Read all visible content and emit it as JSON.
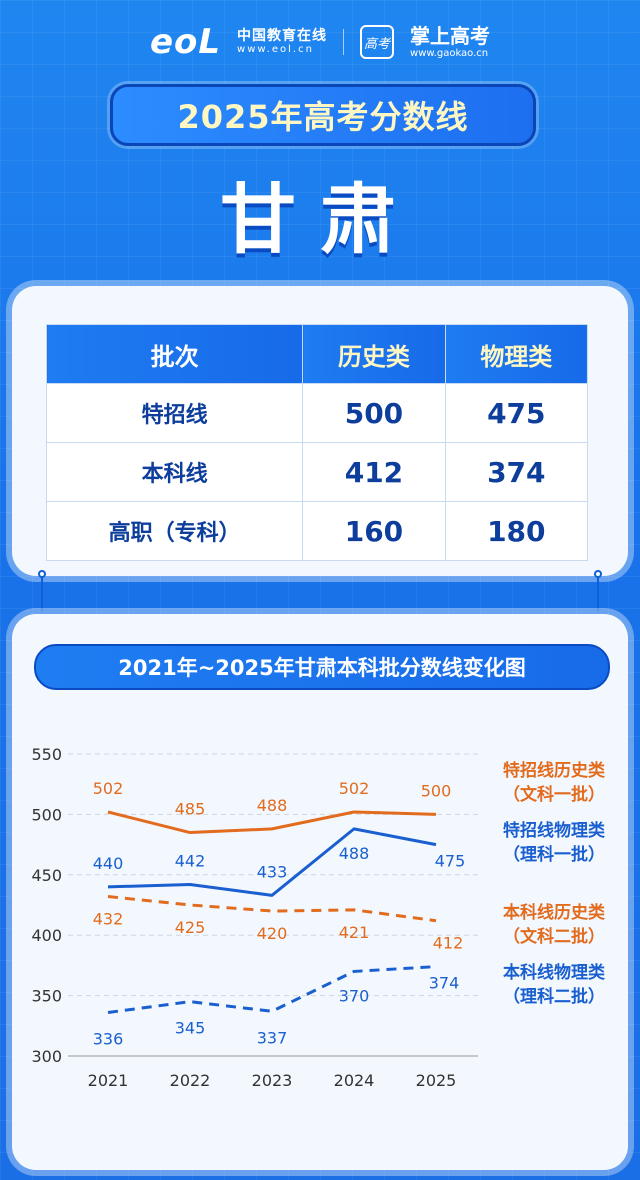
{
  "header": {
    "eol_logo": "eoL",
    "eol_name": "中国教育在线",
    "eol_url": "www.eol.cn",
    "gaokao_badge": "高考",
    "gaokao_name": "掌上高考",
    "gaokao_url": "www.gaokao.cn"
  },
  "title": "2025年高考分数线",
  "province": "甘肃",
  "table": {
    "headers": [
      "批次",
      "历史类",
      "物理类"
    ],
    "rows": [
      {
        "batch": "特招线",
        "history": "500",
        "physics": "475"
      },
      {
        "batch": "本科线",
        "history": "412",
        "physics": "374"
      },
      {
        "batch": "高职（专科）",
        "history": "160",
        "physics": "180"
      }
    ]
  },
  "colors": {
    "orange": "#e26b1d",
    "blue": "#1a5fcf"
  },
  "chart_data": {
    "type": "line",
    "title": "2021年~2025年甘肃本科批分数线变化图",
    "categories": [
      "2021",
      "2022",
      "2023",
      "2024",
      "2025"
    ],
    "ylim": [
      300,
      550
    ],
    "yticks": [
      300,
      350,
      400,
      450,
      500,
      550
    ],
    "grid": true,
    "legend_position": "right",
    "series": [
      {
        "name": "特招线历史类",
        "sub": "（文科一批）",
        "values": [
          502,
          485,
          488,
          502,
          500
        ],
        "color": "#e26b1d",
        "dashed": false
      },
      {
        "name": "特招线物理类",
        "sub": "（理科一批）",
        "values": [
          440,
          442,
          433,
          488,
          475
        ],
        "color": "#1a5fcf",
        "dashed": false
      },
      {
        "name": "本科线历史类",
        "sub": "（文科二批）",
        "values": [
          432,
          425,
          420,
          421,
          412
        ],
        "color": "#e26b1d",
        "dashed": true
      },
      {
        "name": "本科线物理类",
        "sub": "（理科二批）",
        "values": [
          336,
          345,
          337,
          370,
          374
        ],
        "color": "#1a5fcf",
        "dashed": true
      }
    ]
  }
}
